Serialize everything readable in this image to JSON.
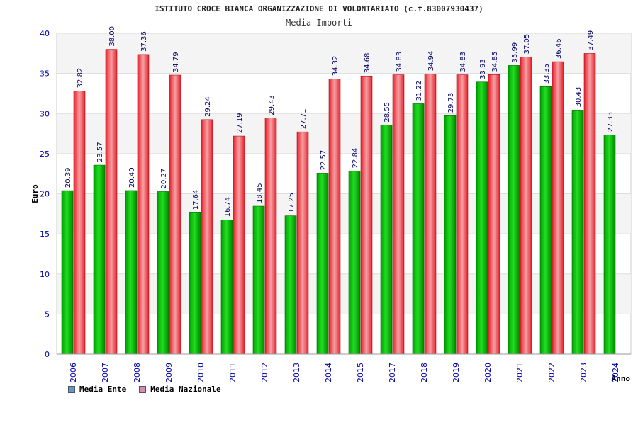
{
  "chart_data": {
    "type": "bar",
    "title": "ISTITUTO CROCE BIANCA ORGANIZZAZIONE DI VOLONTARIATO (c.f.83007930437)",
    "subtitle": "Media Importi",
    "xlabel": "Anno",
    "ylabel": "Euro",
    "ylim": [
      0,
      40
    ],
    "yticks": [
      "0",
      "5",
      "10",
      "15",
      "20",
      "25",
      "30",
      "35",
      "40"
    ],
    "grid": true,
    "legend_position": "bottom-left",
    "categories": [
      "2006",
      "2007",
      "2008",
      "2009",
      "2010",
      "2011",
      "2012",
      "2013",
      "2014",
      "2015",
      "2017",
      "2018",
      "2019",
      "2020",
      "2021",
      "2022",
      "2023",
      "2024"
    ],
    "series": [
      {
        "name": "Media Ente",
        "legend_color": "#5b9bd5",
        "bar_color": "#00a000",
        "values": [
          20.39,
          23.57,
          20.4,
          20.27,
          17.64,
          16.74,
          18.45,
          17.25,
          22.57,
          22.84,
          28.55,
          31.22,
          29.73,
          33.93,
          35.99,
          33.35,
          30.43,
          27.33
        ],
        "labels": [
          "20.39",
          "23.57",
          "20.40",
          "20.27",
          "17.64",
          "16.74",
          "18.45",
          "17.25",
          "22.57",
          "22.84",
          "28.55",
          "31.22",
          "29.73",
          "33.93",
          "35.99",
          "33.35",
          "30.43",
          "27.33"
        ]
      },
      {
        "name": "Media Nazionale",
        "legend_color": "#d98cb3",
        "bar_color": "#e8202a",
        "values": [
          32.82,
          38.0,
          37.36,
          34.79,
          29.24,
          27.19,
          29.43,
          27.71,
          34.32,
          34.68,
          34.83,
          34.94,
          34.83,
          34.85,
          37.05,
          36.46,
          37.49,
          null
        ],
        "labels": [
          "32.82",
          "38.00",
          "37.36",
          "34.79",
          "29.24",
          "27.19",
          "29.43",
          "27.71",
          "34.32",
          "34.68",
          "34.83",
          "34.94",
          "34.83",
          "34.85",
          "37.05",
          "36.46",
          "37.49",
          null
        ]
      }
    ]
  },
  "colors": {
    "band_light": "#f4f4f4",
    "grid": "#dddddd",
    "axis_text": "#0000aa",
    "value_text": "#000066"
  }
}
